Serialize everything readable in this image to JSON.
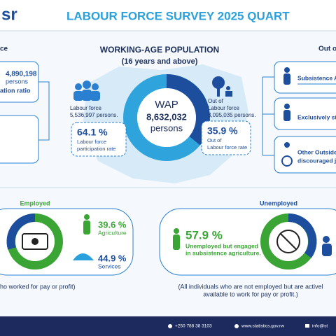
{
  "header": {
    "logo": "sr",
    "title": "LABOUR FORCE SURVEY 2025 QUART"
  },
  "left": {
    "heading": "ce",
    "employed_value": "4,890,198",
    "employed_unit": "persons",
    "ratio_label": "ation ratio"
  },
  "center": {
    "title": "WORKING-AGE POPULATION",
    "subtitle": "(16 years and above)",
    "wap_label": "WAP",
    "wap_value": "8,632,032",
    "wap_unit": "persons",
    "labour_force": {
      "label": "Labour force",
      "persons": "5,536,997 persons.",
      "rate": "64.1 %",
      "rate_label": [
        "Labour force",
        "participation rate"
      ]
    },
    "out_of_labour_force": {
      "label": [
        "Out of",
        "Labour force"
      ],
      "persons": "3,095,035 persons.",
      "rate": "35.9 %",
      "rate_label": [
        "Out of",
        "Labour force rate"
      ]
    }
  },
  "right": {
    "heading": "Out o",
    "items": [
      [
        "Subsistence A"
      ],
      [
        "Exclusively st"
      ],
      [
        "Other Outside",
        "discouraged jo"
      ]
    ]
  },
  "employed": {
    "heading": "Employed",
    "agriculture_rate": "39.6 %",
    "agriculture_label": "Agriculture",
    "services_rate": "44.9 %",
    "services_label": "Services",
    "caption": "ho worked for pay or profit)"
  },
  "unemployed": {
    "heading": "Unemployed",
    "rate": "57.9 %",
    "rate_label": [
      "Unemployed but engaged",
      "in subsistence agriculture."
    ],
    "caption": [
      "(All individuals who are not employed but are activel",
      "available to work for pay or profit.)"
    ]
  },
  "footer": {
    "phone": "+250 788 38 3103",
    "website": "www.statistics.gov.rw",
    "email": "info@st"
  }
}
